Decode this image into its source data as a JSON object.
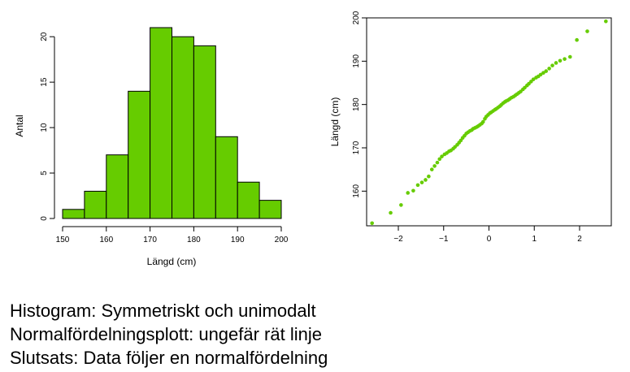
{
  "colors": {
    "bar_fill": "#66CC00",
    "point": "#66CC00",
    "stroke": "#000000"
  },
  "chart_data": [
    {
      "type": "bar",
      "title": "",
      "xlabel": "Längd (cm)",
      "ylabel": "Antal",
      "bin_edges": [
        150,
        155,
        160,
        165,
        170,
        175,
        180,
        185,
        190,
        195,
        200
      ],
      "values": [
        1,
        3,
        7,
        14,
        21,
        20,
        19,
        9,
        4,
        2
      ],
      "xlim": [
        150,
        200
      ],
      "ylim": [
        0,
        21
      ],
      "x_ticks": [
        150,
        160,
        170,
        180,
        190,
        200
      ],
      "y_ticks": [
        0,
        5,
        10,
        15,
        20
      ],
      "grid": false
    },
    {
      "type": "scatter",
      "title": "",
      "xlabel": "",
      "ylabel": "Längd (cm)",
      "xlim": [
        -2.7,
        2.7
      ],
      "ylim": [
        152,
        200
      ],
      "x_ticks": [
        -2,
        -1,
        0,
        1,
        2
      ],
      "x_tick_labels": [
        "−2",
        "−1",
        "0",
        "1",
        "2"
      ],
      "y_ticks": [
        160,
        170,
        180,
        190,
        200
      ],
      "grid": false,
      "points": [
        [
          -2.58,
          152.6
        ],
        [
          -2.17,
          155.0
        ],
        [
          -1.94,
          156.8
        ],
        [
          -1.79,
          159.6
        ],
        [
          -1.67,
          160.1
        ],
        [
          -1.57,
          161.4
        ],
        [
          -1.48,
          162.0
        ],
        [
          -1.4,
          162.6
        ],
        [
          -1.33,
          163.4
        ],
        [
          -1.26,
          165.0
        ],
        [
          -1.2,
          165.8
        ],
        [
          -1.14,
          166.6
        ],
        [
          -1.09,
          167.4
        ],
        [
          -1.04,
          168.0
        ],
        [
          -0.98,
          168.5
        ],
        [
          -0.93,
          168.8
        ],
        [
          -0.88,
          169.2
        ],
        [
          -0.84,
          169.4
        ],
        [
          -0.79,
          169.8
        ],
        [
          -0.75,
          170.2
        ],
        [
          -0.7,
          170.7
        ],
        [
          -0.66,
          171.2
        ],
        [
          -0.62,
          171.7
        ],
        [
          -0.58,
          172.3
        ],
        [
          -0.54,
          172.8
        ],
        [
          -0.5,
          173.3
        ],
        [
          -0.46,
          173.6
        ],
        [
          -0.42,
          173.9
        ],
        [
          -0.38,
          174.1
        ],
        [
          -0.35,
          174.4
        ],
        [
          -0.31,
          174.6
        ],
        [
          -0.27,
          174.8
        ],
        [
          -0.24,
          175.0
        ],
        [
          -0.2,
          175.3
        ],
        [
          -0.16,
          175.6
        ],
        [
          -0.13,
          176.0
        ],
        [
          -0.09,
          176.7
        ],
        [
          -0.06,
          177.2
        ],
        [
          -0.02,
          177.6
        ],
        [
          0.02,
          178.0
        ],
        [
          0.05,
          178.2
        ],
        [
          0.09,
          178.5
        ],
        [
          0.13,
          178.8
        ],
        [
          0.16,
          179.0
        ],
        [
          0.2,
          179.3
        ],
        [
          0.24,
          179.6
        ],
        [
          0.27,
          179.9
        ],
        [
          0.31,
          180.3
        ],
        [
          0.35,
          180.6
        ],
        [
          0.38,
          180.8
        ],
        [
          0.42,
          181.0
        ],
        [
          0.46,
          181.3
        ],
        [
          0.5,
          181.6
        ],
        [
          0.54,
          181.8
        ],
        [
          0.58,
          182.1
        ],
        [
          0.62,
          182.4
        ],
        [
          0.66,
          182.7
        ],
        [
          0.7,
          183.0
        ],
        [
          0.75,
          183.5
        ],
        [
          0.79,
          183.9
        ],
        [
          0.84,
          184.4
        ],
        [
          0.88,
          184.8
        ],
        [
          0.93,
          185.3
        ],
        [
          0.98,
          185.8
        ],
        [
          1.04,
          186.2
        ],
        [
          1.09,
          186.5
        ],
        [
          1.14,
          186.9
        ],
        [
          1.2,
          187.3
        ],
        [
          1.26,
          187.7
        ],
        [
          1.33,
          188.3
        ],
        [
          1.4,
          189.0
        ],
        [
          1.48,
          189.6
        ],
        [
          1.57,
          190.1
        ],
        [
          1.67,
          190.5
        ],
        [
          1.79,
          191.0
        ],
        [
          1.94,
          194.9
        ],
        [
          2.17,
          196.9
        ],
        [
          2.58,
          199.2
        ]
      ]
    }
  ],
  "captions": {
    "line1": "Histogram: Symmetriskt och unimodalt",
    "line2": "Normalfördelningsplott: ungefär rät linje",
    "line3": "Slutsats: Data följer en normalfördelning"
  }
}
